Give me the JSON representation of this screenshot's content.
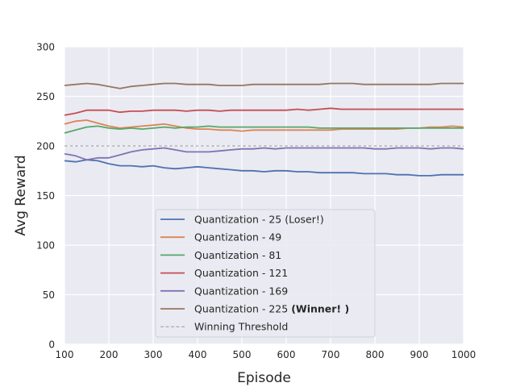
{
  "chart_data": {
    "type": "line",
    "title": "",
    "xlabel": "Episode",
    "ylabel": "Avg Reward",
    "xlim": [
      100,
      1000
    ],
    "ylim": [
      0,
      300
    ],
    "xticks": [
      "100",
      "200",
      "300",
      "400",
      "500",
      "600",
      "700",
      "800",
      "900",
      "1000"
    ],
    "yticks": [
      "0",
      "50",
      "100",
      "150",
      "200",
      "250",
      "300"
    ],
    "grid": true,
    "legend_position": "lower-center",
    "background": "#eaeaf2",
    "threshold": {
      "name": "Winning Threshold",
      "value": 200,
      "color": "#9a9a9a"
    },
    "x": [
      100,
      125,
      150,
      175,
      200,
      225,
      250,
      275,
      300,
      325,
      350,
      375,
      400,
      425,
      450,
      475,
      500,
      525,
      550,
      575,
      600,
      625,
      650,
      675,
      700,
      725,
      750,
      775,
      800,
      825,
      850,
      875,
      900,
      925,
      950,
      975,
      1000
    ],
    "series": [
      {
        "name_main": "Quantization - 25 (Loser!)",
        "name_bold": "",
        "color": "#4c72b0",
        "values": [
          185,
          184,
          186,
          185,
          182,
          180,
          180,
          179,
          180,
          178,
          177,
          178,
          179,
          178,
          177,
          176,
          175,
          175,
          174,
          175,
          175,
          174,
          174,
          173,
          173,
          173,
          173,
          172,
          172,
          172,
          171,
          171,
          170,
          170,
          171,
          171,
          171
        ]
      },
      {
        "name_main": "Quantization - 49",
        "name_bold": "",
        "color": "#dd8452",
        "values": [
          222,
          225,
          226,
          223,
          220,
          218,
          219,
          220,
          221,
          222,
          220,
          218,
          217,
          217,
          216,
          216,
          215,
          216,
          216,
          216,
          216,
          216,
          216,
          216,
          216,
          217,
          217,
          217,
          217,
          217,
          217,
          218,
          218,
          219,
          219,
          220,
          219
        ]
      },
      {
        "name_main": "Quantization - 81",
        "name_bold": "",
        "color": "#55a868",
        "values": [
          213,
          216,
          219,
          220,
          218,
          217,
          218,
          217,
          218,
          219,
          218,
          219,
          219,
          220,
          219,
          219,
          219,
          219,
          219,
          219,
          219,
          219,
          219,
          218,
          218,
          218,
          218,
          218,
          218,
          218,
          218,
          218,
          218,
          218,
          218,
          218,
          218
        ]
      },
      {
        "name_main": "Quantization - 121",
        "name_bold": "",
        "color": "#c44e52",
        "values": [
          231,
          233,
          236,
          236,
          236,
          234,
          235,
          235,
          236,
          236,
          236,
          235,
          236,
          236,
          235,
          236,
          236,
          236,
          236,
          236,
          236,
          237,
          236,
          237,
          238,
          237,
          237,
          237,
          237,
          237,
          237,
          237,
          237,
          237,
          237,
          237,
          237
        ]
      },
      {
        "name_main": "Quantization - 169",
        "name_bold": "",
        "color": "#8172b3",
        "values": [
          192,
          190,
          186,
          188,
          188,
          191,
          194,
          196,
          197,
          198,
          196,
          194,
          194,
          194,
          195,
          196,
          197,
          197,
          198,
          197,
          198,
          198,
          198,
          198,
          198,
          198,
          198,
          198,
          197,
          197,
          198,
          198,
          198,
          197,
          198,
          198,
          197
        ]
      },
      {
        "name_main": "Quantization - 225 ",
        "name_bold": "(Winner! )",
        "color": "#937860",
        "values": [
          261,
          262,
          263,
          262,
          260,
          258,
          260,
          261,
          262,
          263,
          263,
          262,
          262,
          262,
          261,
          261,
          261,
          262,
          262,
          262,
          262,
          262,
          262,
          262,
          263,
          263,
          263,
          262,
          262,
          262,
          262,
          262,
          262,
          262,
          263,
          263,
          263
        ]
      }
    ]
  }
}
